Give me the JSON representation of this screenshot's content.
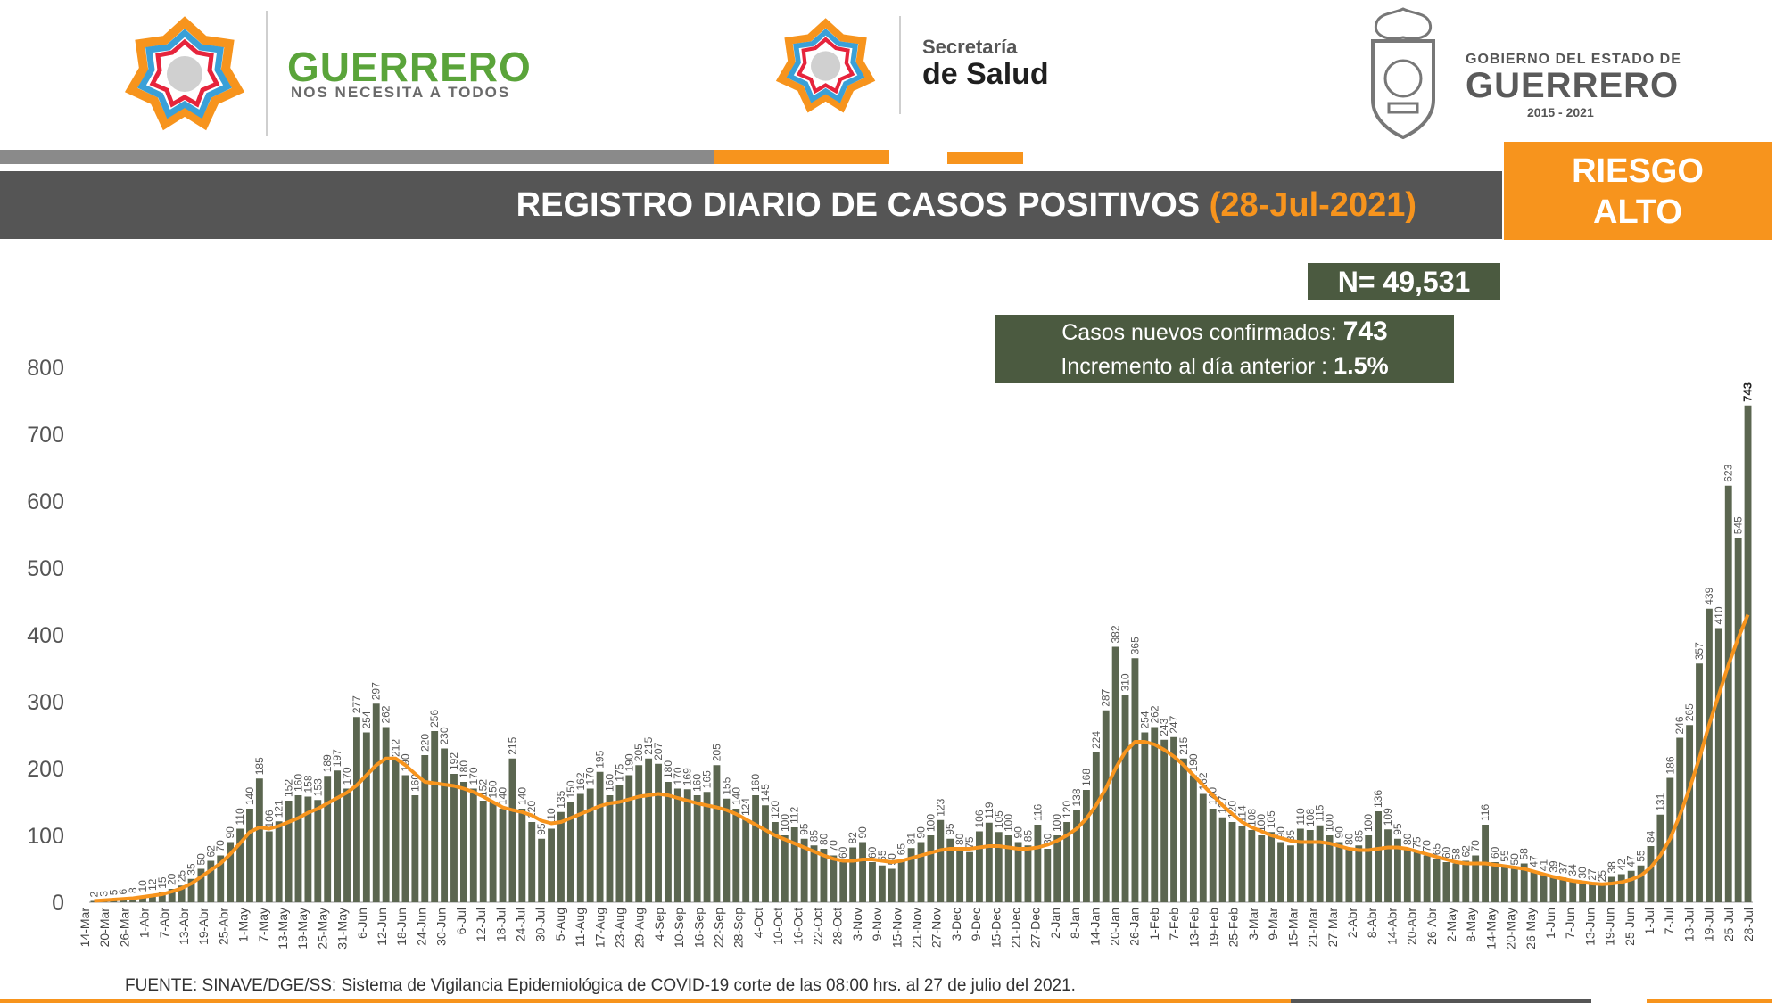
{
  "header": {
    "brand_name": "GUERRERO",
    "brand_tagline": "NOS NECESITA A TODOS",
    "secretaria_top": "Secretaría",
    "secretaria_bottom": "de Salud",
    "gobierno_top": "GOBIERNO DEL ESTADO DE",
    "gobierno_name": "GUERRERO",
    "gobierno_years": "2015 - 2021",
    "emblem_icon": "coat-of-arms-icon",
    "star_icon": "guerrero-star-icon"
  },
  "title": {
    "main": "REGISTRO DIARIO DE CASOS POSITIVOS",
    "date": "(28-Jul-2021)"
  },
  "risk": {
    "line1": "RIESGO",
    "line2": "ALTO"
  },
  "summary": {
    "n_total": "N= 49,531",
    "new_cases_label": "Casos nuevos confirmados:",
    "new_cases_value": "743",
    "increment_label": "Incremento al día anterior :",
    "increment_value": "1.5%"
  },
  "source": "FUENTE: SINAVE/DGE/SS: Sistema de Vigilancia Epidemiológica de COVID-19 corte de las 08:00 hrs. al 27 de julio del 2021.",
  "colors": {
    "bar": "#5b6650",
    "line": "#f7941d",
    "band": "#555555",
    "accent": "#f7941d",
    "box": "#4b5a40"
  },
  "chart_data": {
    "type": "bar",
    "ylim": [
      0,
      800
    ],
    "yticks": [
      0,
      100,
      200,
      300,
      400,
      500,
      600,
      700,
      800
    ],
    "grid": false,
    "x_tick_labels": [
      "14-Mar",
      "20-Mar",
      "26-Mar",
      "1-Abr",
      "7-Abr",
      "13-Abr",
      "19-Abr",
      "25-Abr",
      "1-May",
      "7-May",
      "13-May",
      "19-May",
      "25-May",
      "31-May",
      "6-Jun",
      "12-Jun",
      "18-Jun",
      "24-Jun",
      "30-Jun",
      "6-Jul",
      "12-Jul",
      "18-Jul",
      "24-Jul",
      "30-Jul",
      "5-Aug",
      "11-Aug",
      "17-Aug",
      "23-Aug",
      "29-Aug",
      "4-Sep",
      "10-Sep",
      "16-Sep",
      "22-Sep",
      "28-Sep",
      "4-Oct",
      "10-Oct",
      "16-Oct",
      "22-Oct",
      "28-Oct",
      "3-Nov",
      "9-Nov",
      "15-Nov",
      "21-Nov",
      "27-Nov",
      "3-Dec",
      "9-Dec",
      "15-Dec",
      "21-Dec",
      "27-Dec",
      "2-Jan",
      "8-Jan",
      "14-Jan",
      "20-Jan",
      "26-Jan",
      "1-Feb",
      "7-Feb",
      "13-Feb",
      "19-Feb",
      "25-Feb",
      "3-Mar",
      "9-Mar",
      "15-Mar",
      "21-Mar",
      "27-Mar",
      "2-Abr",
      "8-Abr",
      "14-Abr",
      "20-Abr",
      "26-Abr",
      "2-May",
      "8-May",
      "14-May",
      "20-May",
      "26-May",
      "1-Jun",
      "7-Jun",
      "13-Jun",
      "19-Jun",
      "25-Jun",
      "1-Jul",
      "7-Jul",
      "13-Jul",
      "19-Jul",
      "25-Jul",
      "28-Jul"
    ],
    "series": [
      {
        "type": "bar",
        "values": [
          2,
          3,
          5,
          6,
          8,
          10,
          12,
          15,
          20,
          25,
          35,
          50,
          62,
          70,
          90,
          110,
          140,
          185,
          106,
          121,
          152,
          160,
          158,
          153,
          189,
          197,
          170,
          277,
          254,
          297,
          262,
          212,
          190,
          160,
          220,
          256,
          230,
          192,
          180,
          170,
          152,
          150,
          140,
          215,
          140,
          120,
          95,
          110,
          135,
          150,
          162,
          170,
          195,
          160,
          175,
          190,
          205,
          215,
          207,
          180,
          170,
          169,
          160,
          165,
          205,
          155,
          140,
          124,
          160,
          145,
          120,
          100,
          112,
          95,
          85,
          80,
          70,
          60,
          82,
          90,
          60,
          55,
          50,
          65,
          81,
          90,
          100,
          123,
          95,
          80,
          75,
          106,
          119,
          105,
          100,
          90,
          85,
          116,
          80,
          100,
          120,
          138,
          168,
          224,
          287,
          382,
          310,
          365,
          254,
          262,
          243,
          247,
          215,
          190,
          162,
          140,
          127,
          120,
          114,
          108,
          100,
          105,
          90,
          85,
          110,
          108,
          115,
          100,
          90,
          80,
          85,
          100,
          136,
          109,
          95,
          80,
          75,
          70,
          65,
          60,
          58,
          62,
          70,
          116,
          60,
          55,
          50,
          58,
          47,
          41,
          39,
          37,
          34,
          30,
          27,
          25,
          38,
          42,
          47,
          55,
          84,
          131,
          186,
          246,
          265,
          357,
          439,
          410,
          623,
          545,
          743
        ]
      },
      {
        "type": "line",
        "values": [
          2,
          3,
          4,
          5,
          6,
          8,
          10,
          12,
          16,
          21,
          28,
          38,
          48,
          58,
          72,
          88,
          105,
          112,
          110,
          114,
          120,
          126,
          134,
          140,
          148,
          156,
          164,
          175,
          190,
          205,
          215,
          215,
          205,
          192,
          180,
          178,
          176,
          174,
          170,
          165,
          158,
          150,
          142,
          138,
          135,
          130,
          122,
          118,
          120,
          126,
          132,
          138,
          144,
          148,
          150,
          154,
          158,
          160,
          162,
          160,
          156,
          152,
          148,
          145,
          142,
          138,
          132,
          124,
          116,
          108,
          100,
          94,
          88,
          82,
          76,
          70,
          65,
          62,
          62,
          64,
          64,
          62,
          60,
          62,
          66,
          70,
          74,
          78,
          80,
          80,
          80,
          82,
          84,
          84,
          82,
          80,
          80,
          82,
          86,
          92,
          100,
          110,
          125,
          145,
          170,
          200,
          225,
          240,
          240,
          236,
          228,
          218,
          205,
          190,
          175,
          160,
          145,
          132,
          120,
          112,
          106,
          100,
          96,
          92,
          90,
          90,
          90,
          88,
          84,
          80,
          78,
          78,
          80,
          82,
          82,
          80,
          76,
          72,
          68,
          64,
          60,
          58,
          58,
          58,
          56,
          54,
          52,
          50,
          46,
          42,
          38,
          35,
          32,
          30,
          28,
          27,
          28,
          30,
          34,
          40,
          52,
          70,
          95,
          130,
          170,
          215,
          265,
          310,
          355,
          395,
          430
        ]
      }
    ]
  }
}
